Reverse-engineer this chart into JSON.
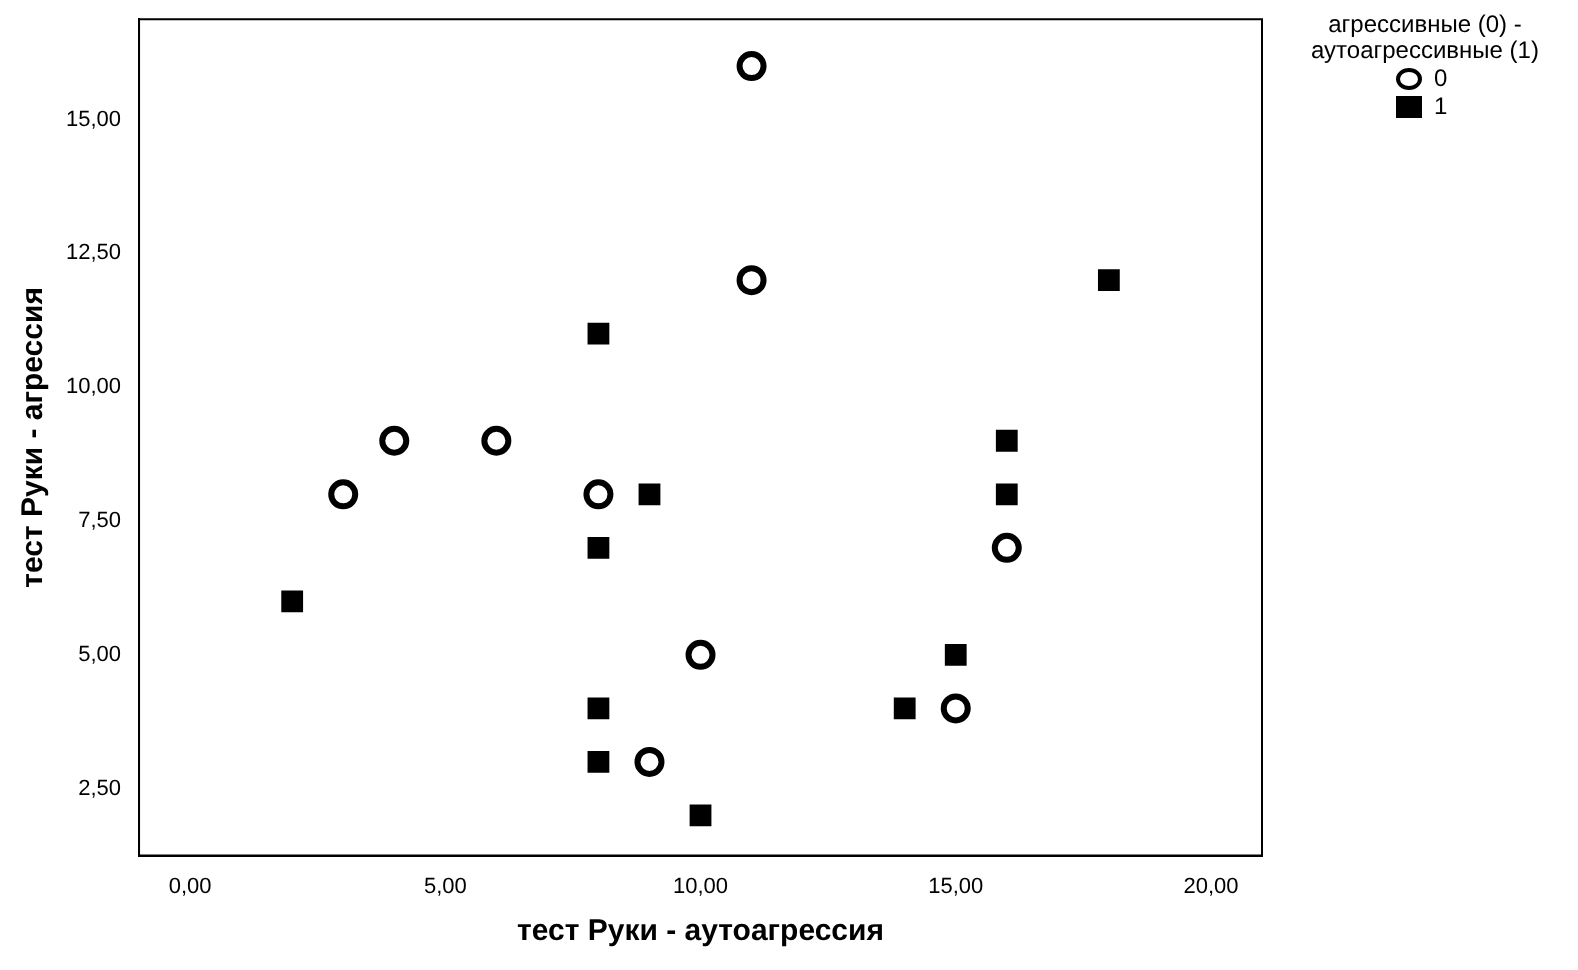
{
  "chart_data": {
    "type": "scatter",
    "xlabel": "тест Руки - аутоагрессия",
    "ylabel": "тест Руки - агрессия",
    "legend_title": "агрессивные (0) - аутоагрессивные (1)",
    "legend": "top right",
    "grid": false,
    "xlim": [
      -1,
      21
    ],
    "ylim": [
      1.25,
      16.875
    ],
    "xticks": [
      {
        "value": 0,
        "label": "0,00"
      },
      {
        "value": 5,
        "label": "5,00"
      },
      {
        "value": 10,
        "label": "10,00"
      },
      {
        "value": 15,
        "label": "15,00"
      },
      {
        "value": 20,
        "label": "20,00"
      }
    ],
    "yticks": [
      {
        "value": 2.5,
        "label": "2,50"
      },
      {
        "value": 5,
        "label": "5,00"
      },
      {
        "value": 7.5,
        "label": "7,50"
      },
      {
        "value": 10,
        "label": "10,00"
      },
      {
        "value": 12.5,
        "label": "12,50"
      },
      {
        "value": 15,
        "label": "15,00"
      }
    ],
    "series": [
      {
        "name": "0",
        "color": "#000000",
        "marker": "circle",
        "x": [
          11,
          11,
          4,
          6,
          3,
          8,
          16,
          10,
          15,
          9
        ],
        "values": [
          16,
          12,
          9,
          9,
          8,
          8,
          7,
          5,
          4,
          3
        ]
      },
      {
        "name": "1",
        "color": "#000000",
        "marker": "square",
        "x": [
          18,
          8,
          16,
          9,
          16,
          8,
          2,
          15,
          8,
          14,
          8,
          10
        ],
        "values": [
          12,
          11,
          9,
          8,
          8,
          7,
          6,
          5,
          4,
          4,
          3,
          2
        ]
      }
    ]
  }
}
